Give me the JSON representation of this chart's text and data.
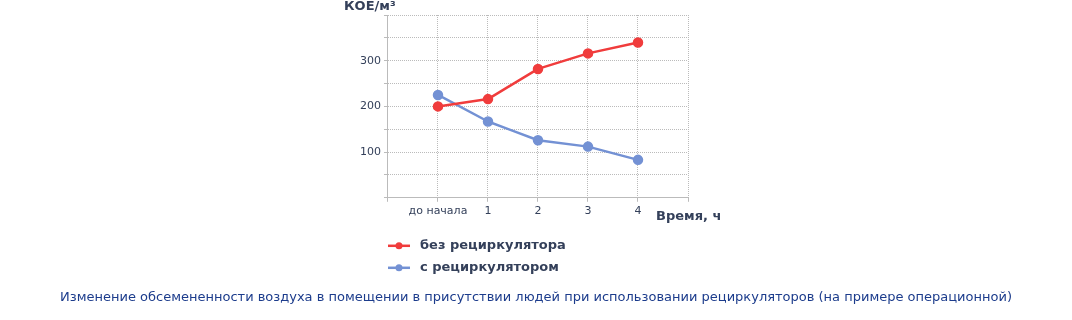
{
  "chart_data": {
    "type": "line",
    "xlabel": "Время, ч",
    "ylabel": "КОЕ/м³",
    "categories": [
      null,
      "до начала",
      "1",
      "2",
      "3",
      "4",
      null
    ],
    "series": [
      {
        "name": "без рециркулятора",
        "color": "#f03c3c",
        "values": [
          null,
          200,
          216,
          282,
          316,
          340,
          null
        ]
      },
      {
        "name": "с рециркулятором",
        "color": "#7391d4",
        "values": [
          null,
          225,
          167,
          126,
          112,
          83,
          null
        ]
      }
    ],
    "ylim": [
      0,
      400
    ],
    "yticks": [
      {
        "value": 0,
        "label": null
      },
      {
        "value": 50,
        "label": null
      },
      100,
      {
        "value": 150,
        "label": null
      },
      200,
      {
        "value": 250,
        "label": null
      },
      300,
      {
        "value": 350,
        "label": null
      },
      {
        "value": 400,
        "label": null
      }
    ],
    "grid": true,
    "legend": "bottom",
    "marker": "circle",
    "line_style": "solid",
    "annotations": [
      "Изменение обсемененности воздуха в помещении в присутствии людей при использовании рециркуляторов (на примере операционной)"
    ]
  }
}
